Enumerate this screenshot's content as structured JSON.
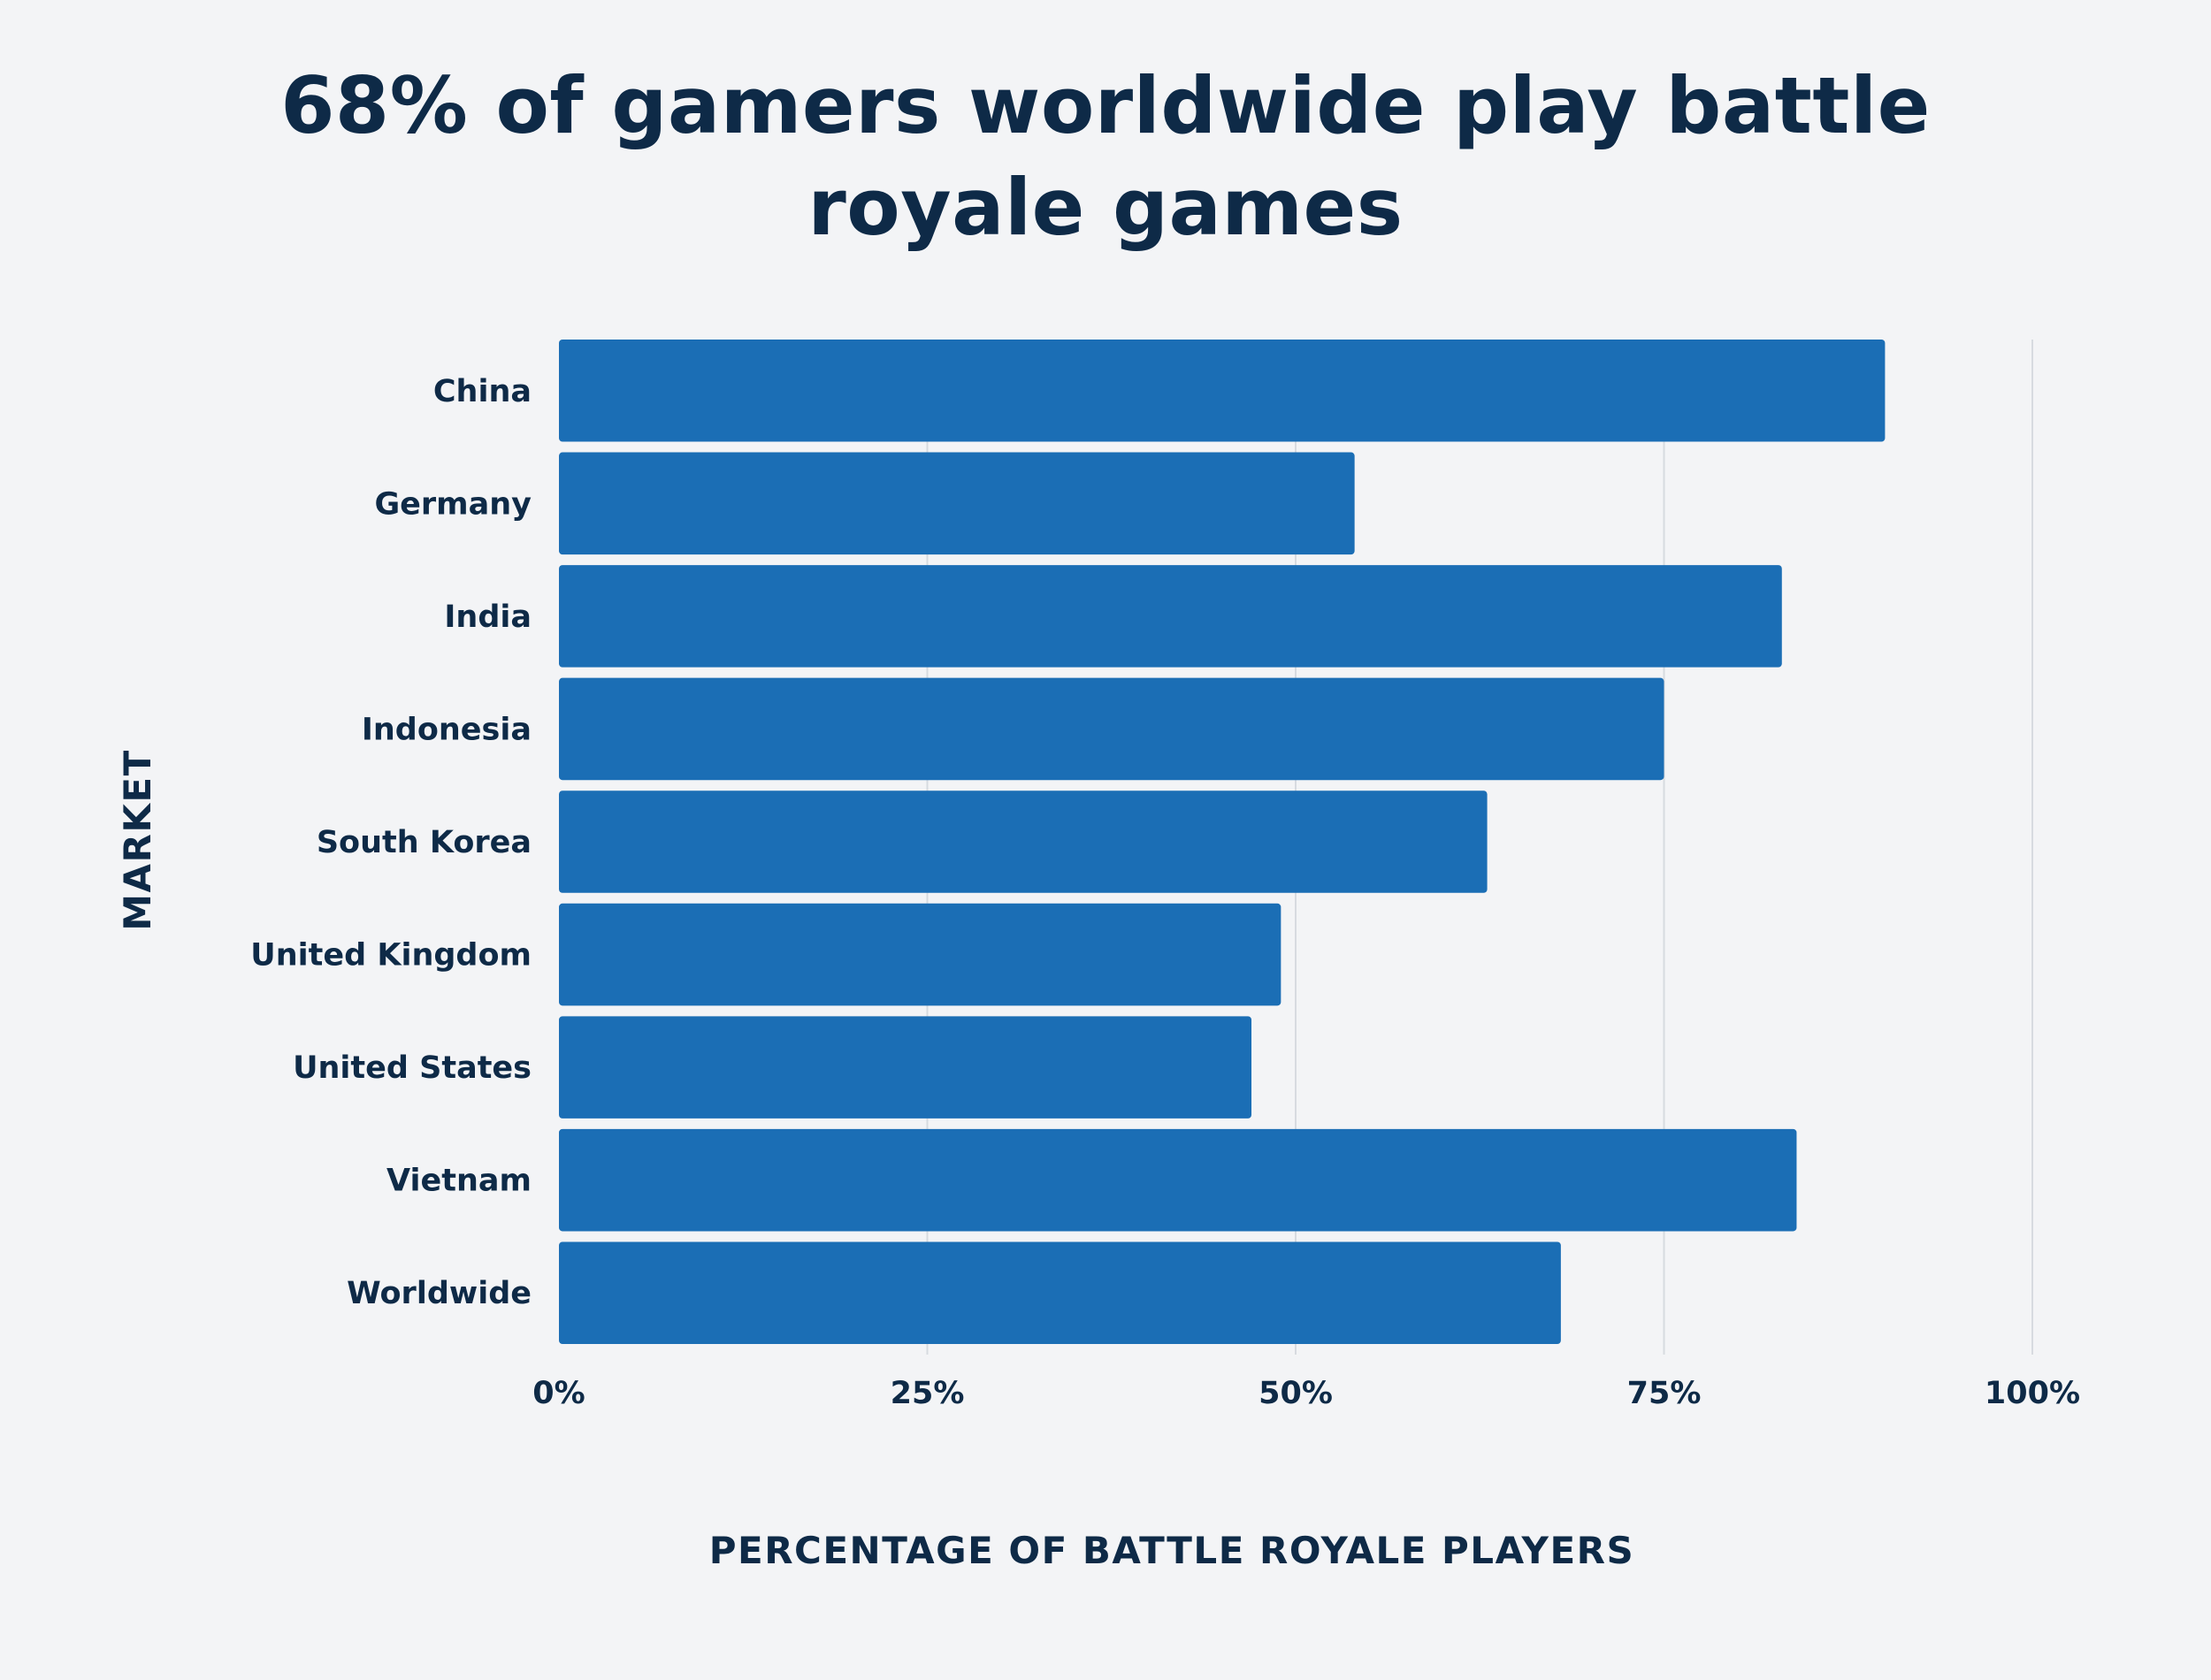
{
  "chart_data": {
    "type": "bar",
    "orientation": "horizontal",
    "title": "68% of gamers worldwide play battle royale games",
    "xlabel": "PERCENTAGE OF BATTLE ROYALE PLAYERS",
    "ylabel": "MARKET",
    "categories": [
      "China",
      "Germany",
      "India",
      "Indonesia",
      "South Korea",
      "United Kingdom",
      "United States",
      "Vietnam",
      "Worldwide"
    ],
    "values": [
      90,
      54,
      83,
      75,
      63,
      49,
      47,
      84,
      68
    ],
    "xlim": [
      0,
      100
    ],
    "xticks": [
      0,
      25,
      50,
      75,
      100
    ],
    "xtick_labels": [
      "0%",
      "25%",
      "50%",
      "75%",
      "100%"
    ],
    "grid": "vertical",
    "bar_color": "#1b6eb5"
  }
}
